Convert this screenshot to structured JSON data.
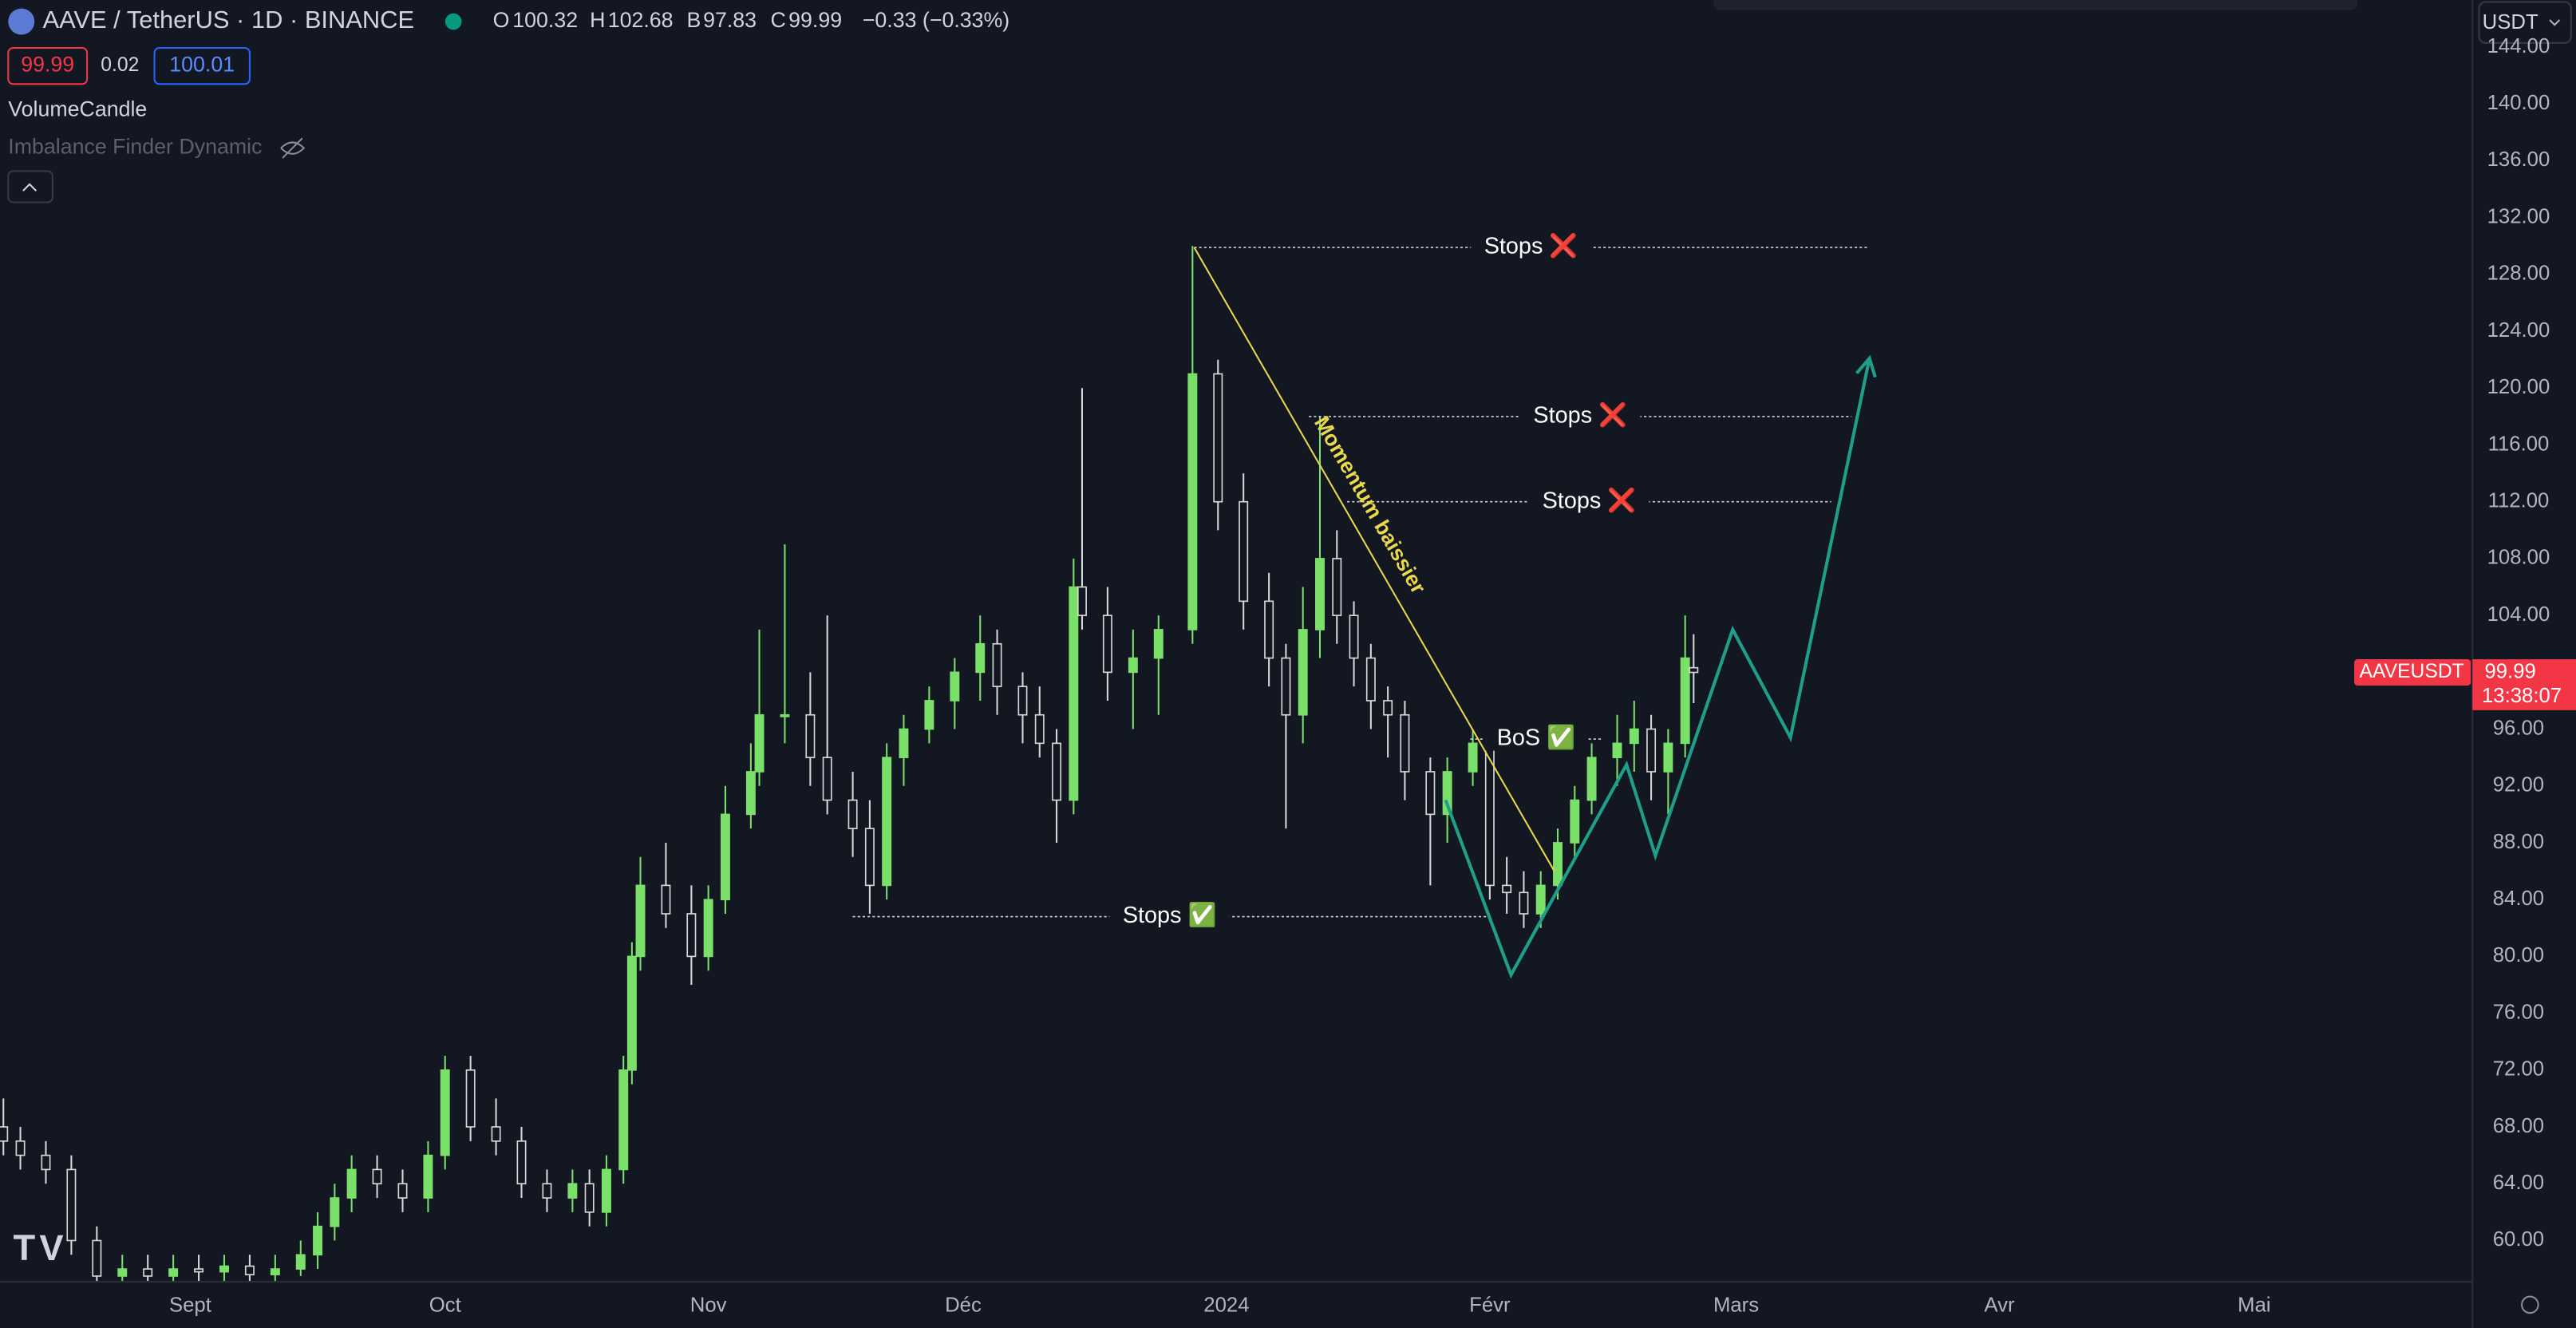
{
  "header": {
    "symbol": "AAVE / TetherUS · 1D · BINANCE",
    "ohlc": [
      {
        "key": "O",
        "value": "100.32"
      },
      {
        "key": "H",
        "value": "102.68"
      },
      {
        "key": "B",
        "value": "97.83"
      },
      {
        "key": "C",
        "value": "99.99"
      }
    ],
    "change": "−0.33 (−0.33%)",
    "bid": "99.99",
    "spread": "0.02",
    "ask": "100.01",
    "indicators": [
      "VolumeCandle",
      "Imbalance Finder Dynamic"
    ],
    "currency": "USDT"
  },
  "chart_data": {
    "type": "candlestick",
    "up_color": "#7be06a",
    "down_color": "#d8d8d8",
    "x": [
      -22,
      -20,
      -17,
      -14,
      -11,
      -8,
      -5,
      -2,
      1,
      4,
      7,
      10,
      13,
      15,
      17,
      19,
      22,
      25,
      28,
      30,
      33,
      36,
      39,
      42,
      45,
      47,
      49,
      51,
      52,
      53,
      56,
      59,
      61,
      63,
      66,
      67,
      70,
      73,
      75,
      78,
      80,
      82,
      84,
      87,
      90,
      93,
      95,
      98,
      100,
      102,
      104,
      105,
      108,
      111,
      114,
      118,
      121,
      124,
      127,
      129,
      131,
      133,
      135,
      137,
      139,
      141,
      143,
      146,
      148,
      151,
      153,
      155,
      157,
      159,
      161,
      163,
      165,
      168,
      170,
      172,
      174,
      176,
      177
    ],
    "open": [
      68,
      67,
      66,
      65,
      60,
      57.5,
      58,
      57.5,
      58,
      57.8,
      58.2,
      57.6,
      58,
      59,
      61,
      63,
      65,
      64,
      63,
      66,
      72,
      68,
      67,
      64,
      63,
      64,
      62,
      65,
      72,
      80,
      85,
      83,
      80,
      84,
      90,
      93,
      97,
      97,
      94,
      91,
      89,
      85,
      94,
      96,
      98,
      100,
      102,
      99,
      97,
      95,
      91,
      106,
      104,
      100,
      101,
      103,
      121,
      112,
      105,
      101,
      97,
      103,
      108,
      104,
      101,
      98,
      97,
      93,
      90,
      93,
      95,
      85,
      84.5,
      83,
      85,
      88,
      91,
      94,
      95,
      96,
      93,
      95,
      100.32
    ],
    "high": [
      70,
      68,
      67,
      66,
      61,
      59,
      59,
      59,
      59,
      59,
      59,
      59,
      60,
      62,
      64,
      66,
      66,
      65,
      67,
      73,
      73,
      70,
      68,
      65,
      65,
      65,
      66,
      73,
      81,
      87,
      88,
      85,
      85,
      92,
      95,
      103,
      109,
      100,
      104,
      93,
      91,
      95,
      97,
      99,
      101,
      104,
      103,
      100,
      99,
      96,
      108,
      120,
      106,
      103,
      104,
      130,
      122,
      114,
      107,
      102,
      106,
      118,
      110,
      105,
      102,
      99,
      98,
      94,
      94,
      96,
      96,
      87,
      86,
      86,
      89,
      92,
      95,
      97,
      98,
      97,
      96,
      104,
      102.68
    ],
    "low": [
      66,
      65,
      64,
      59,
      56.5,
      57,
      57,
      57,
      57,
      57,
      57,
      57,
      57.5,
      58,
      60,
      62,
      63,
      62,
      62,
      65,
      67,
      66,
      63,
      62,
      62,
      61,
      61,
      64,
      71,
      79,
      82,
      78,
      79,
      83,
      89,
      92,
      95,
      92,
      90,
      87,
      83,
      84,
      92,
      95,
      96,
      98,
      97,
      95,
      94,
      88,
      90,
      103,
      98,
      96,
      97,
      102,
      110,
      103,
      99,
      89,
      95,
      101,
      102,
      99,
      96,
      94,
      91,
      85,
      88,
      92,
      84,
      83,
      82,
      82,
      84,
      87,
      90,
      92,
      93,
      91,
      90,
      94,
      97.83
    ],
    "close": [
      67,
      66,
      65,
      60,
      57.5,
      58,
      57.5,
      58,
      57.8,
      58.2,
      57.6,
      58,
      59,
      61,
      63,
      65,
      64,
      63,
      66,
      72,
      68,
      67,
      64,
      63,
      64,
      62,
      65,
      72,
      80,
      85,
      83,
      80,
      84,
      90,
      93,
      97,
      97,
      94,
      91,
      89,
      85,
      94,
      96,
      98,
      100,
      102,
      99,
      97,
      95,
      91,
      106,
      104,
      100,
      101,
      103,
      121,
      112,
      105,
      101,
      97,
      103,
      108,
      104,
      101,
      98,
      97,
      93,
      90,
      93,
      95,
      85,
      84.5,
      83,
      85,
      88,
      91,
      94,
      95,
      96,
      93,
      95,
      101,
      99.99
    ],
    "xlim": [
      -22.4,
      268.7
    ],
    "ylim": [
      57.1,
      147.3
    ],
    "xticks": [
      {
        "value": 0,
        "label": "Sept"
      },
      {
        "value": 30,
        "label": "Oct"
      },
      {
        "value": 61,
        "label": "Nov"
      },
      {
        "value": 91,
        "label": "Déc"
      },
      {
        "value": 122,
        "label": "2024"
      },
      {
        "value": 153,
        "label": "Févr"
      },
      {
        "value": 182,
        "label": "Mars"
      },
      {
        "value": 213,
        "label": "Avr"
      },
      {
        "value": 243,
        "label": "Mai"
      }
    ],
    "yticks": [
      {
        "value": 60,
        "label": "60.00"
      },
      {
        "value": 64,
        "label": "64.00"
      },
      {
        "value": 68,
        "label": "68.00"
      },
      {
        "value": 72,
        "label": "72.00"
      },
      {
        "value": 76,
        "label": "76.00"
      },
      {
        "value": 80,
        "label": "80.00"
      },
      {
        "value": 84,
        "label": "84.00"
      },
      {
        "value": 88,
        "label": "88.00"
      },
      {
        "value": 92,
        "label": "92.00"
      },
      {
        "value": 96,
        "label": "96.00"
      },
      {
        "value": 100,
        "label": "100.00"
      },
      {
        "value": 104,
        "label": "104.00"
      },
      {
        "value": 108,
        "label": "108.00"
      },
      {
        "value": 112,
        "label": "112.00"
      },
      {
        "value": 116,
        "label": "116.00"
      },
      {
        "value": 120,
        "label": "120.00"
      },
      {
        "value": 124,
        "label": "124.00"
      },
      {
        "value": 128,
        "label": "128.00"
      },
      {
        "value": 132,
        "label": "132.00"
      },
      {
        "value": 136,
        "label": "136.00"
      },
      {
        "value": 140,
        "label": "140.00"
      },
      {
        "value": 144,
        "label": "144.00"
      }
    ],
    "levels": [
      {
        "text": "Stops ❌",
        "level": 129.9,
        "x_start": 118.2,
        "x_end": 197.5
      },
      {
        "text": "Stops ❌",
        "level": 118.0,
        "x_start": 131.7,
        "x_end": 195.6
      },
      {
        "text": "Stops ❌",
        "level": 112.0,
        "x_start": 136.2,
        "x_end": 193.2
      },
      {
        "text": "Stops ✅",
        "level": 82.8,
        "x_start": 78,
        "x_end": 152.6
      },
      {
        "text": "BoS ✅",
        "level": 95.3,
        "x_start": 150.7,
        "x_end": 166.2
      }
    ],
    "trendline": {
      "text": "Momentum baissier",
      "x": [
        118.2,
        160.6
      ],
      "y": [
        129.9,
        86
      ],
      "color": "#e8d84a"
    },
    "projection": {
      "x": [
        147.8,
        155.5,
        169.1,
        172.5,
        181.6,
        188.4,
        197.7
      ],
      "y": [
        91.0,
        78.7,
        93.5,
        87.1,
        103.0,
        95.4,
        122.1
      ],
      "color": "#1f9e89"
    },
    "price_label": {
      "symbol": "AAVEUSDT",
      "price": "99.99",
      "countdown": "13:38:07"
    }
  }
}
